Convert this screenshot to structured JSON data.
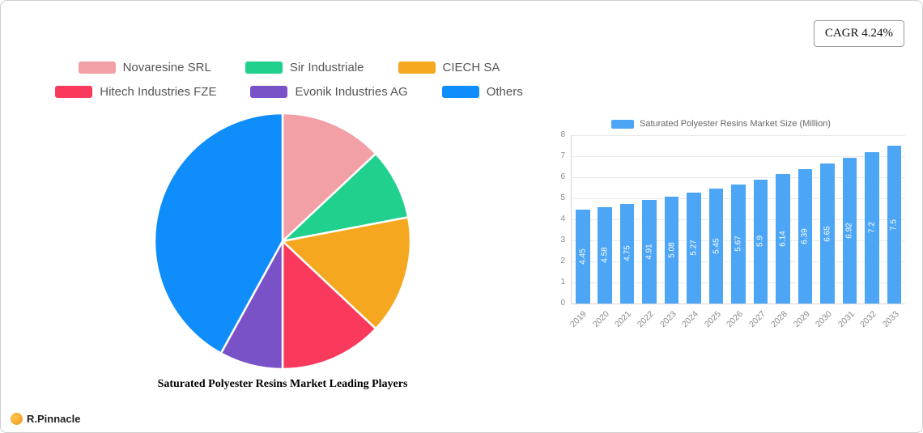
{
  "cagr_badge": {
    "label": "CAGR 4.24%"
  },
  "logo": {
    "text": "R.Pinnacle"
  },
  "chart_data": [
    {
      "type": "pie",
      "title": "Saturated Polyester Resins Market Leading Players",
      "labels": [
        "Novaresine SRL",
        "Sir Industriale",
        "CIECH SA",
        "Hitech Industries FZE",
        "Evonik Industries AG",
        "Others"
      ],
      "values_percent": [
        13,
        9,
        15,
        13,
        8,
        42
      ],
      "colors": [
        "#f2a0a5",
        "#1fd18c",
        "#f5a81f",
        "#f93a5d",
        "#7a52c8",
        "#0f8dfa"
      ],
      "legend_position": "top",
      "start_angle": "top",
      "direction": "clockwise"
    },
    {
      "type": "bar",
      "legend": "Saturated Polyester Resins Market Size (Million)",
      "categories": [
        "2019",
        "2020",
        "2021",
        "2022",
        "2023",
        "2024",
        "2025",
        "2026",
        "2027",
        "2028",
        "2029",
        "2030",
        "2031",
        "2032",
        "2033"
      ],
      "values": [
        4.45,
        4.58,
        4.75,
        4.91,
        5.08,
        5.27,
        5.45,
        5.67,
        5.9,
        6.14,
        6.39,
        6.65,
        6.92,
        7.2,
        7.5
      ],
      "value_labels": [
        "4.45",
        "4.58",
        "4.75",
        "4.91",
        "5.08",
        "5.27",
        "5.45",
        "5.67",
        "5.9",
        "6.14",
        "6.39",
        "6.65",
        "6.92",
        "7.2",
        "7.5"
      ],
      "bar_color": "#4ca6f5",
      "ylim": [
        0,
        8
      ],
      "ytick_step": 1,
      "grid": true,
      "xlabel_rotation": -45,
      "value_label_position": "inside-center-vertical",
      "legend_position": "top"
    }
  ]
}
